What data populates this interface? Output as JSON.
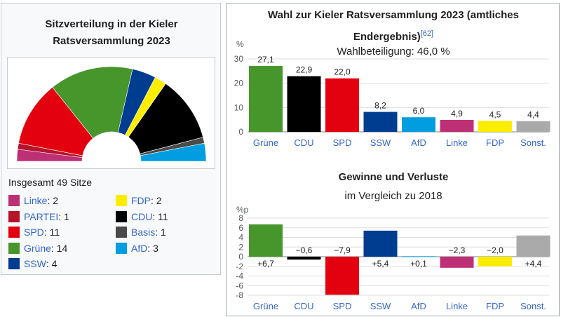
{
  "seat_panel": {
    "title_line1": "Sitzverteilung in der Kieler",
    "title_line2": "Ratsversammlung 2023",
    "total_label": "Insgesamt 49 Sitze",
    "parties": [
      {
        "name": "Linke",
        "seats": 2,
        "color": "#be3075"
      },
      {
        "name": "PARTEI",
        "seats": 1,
        "color": "#b5152b"
      },
      {
        "name": "SPD",
        "seats": 11,
        "color": "#e3000f"
      },
      {
        "name": "Grüne",
        "seats": 14,
        "color": "#46962b"
      },
      {
        "name": "SSW",
        "seats": 4,
        "color": "#003c8f"
      },
      {
        "name": "FDP",
        "seats": 2,
        "color": "#ffed00"
      },
      {
        "name": "CDU",
        "seats": 11,
        "color": "#000000"
      },
      {
        "name": "Basis",
        "seats": 1,
        "color": "#4a4a4a"
      },
      {
        "name": "AfD",
        "seats": 3,
        "color": "#009ee0"
      }
    ]
  },
  "results_panel": {
    "title_line1": "Wahl zur Kieler Ratsversammlung 2023 (amtliches",
    "title_line2": "Endergebnis)",
    "citation": "[62]"
  },
  "chart_data": [
    {
      "type": "bar",
      "title": "Wahl zur Kieler Ratsversammlung 2023 (amtliches Endergebnis)",
      "subtitle": "Wahlbeteiligung: 46,0 %",
      "ylabel": "%",
      "ylim": [
        0,
        30
      ],
      "yticks": [
        0,
        10,
        20,
        30
      ],
      "categories": [
        "Grüne",
        "CDU",
        "SPD",
        "SSW",
        "AfD",
        "Linke",
        "FDP",
        "Sonst."
      ],
      "values": [
        27.1,
        22.9,
        22.0,
        8.2,
        6.0,
        4.9,
        4.5,
        4.4
      ],
      "value_labels": [
        "27,1",
        "22,9",
        "22,0",
        "8,2",
        "6,0",
        "4,9",
        "4,5",
        "4,4"
      ],
      "colors": [
        "#46962b",
        "#000000",
        "#e3000f",
        "#003c8f",
        "#009ee0",
        "#be3075",
        "#ffed00",
        "#aaaaaa"
      ],
      "grid": true
    },
    {
      "type": "bar",
      "title": "Gewinne und Verluste",
      "subtitle": "im Vergleich zu 2018",
      "ylabel": "%p",
      "ylim": [
        -8,
        8
      ],
      "yticks": [
        8,
        6,
        4,
        2,
        0,
        -2,
        -4,
        -6,
        -8
      ],
      "categories": [
        "Grüne",
        "CDU",
        "SPD",
        "SSW",
        "AfD",
        "Linke",
        "FDP",
        "Sonst."
      ],
      "values": [
        6.7,
        -0.6,
        -7.9,
        5.4,
        0.1,
        -2.3,
        -2.0,
        4.4
      ],
      "value_labels": [
        "+6,7",
        "−0,6",
        "−7,9",
        "+5,4",
        "+0,1",
        "−2,3",
        "−2,0",
        "+4,4"
      ],
      "colors": [
        "#46962b",
        "#000000",
        "#e3000f",
        "#003c8f",
        "#009ee0",
        "#be3075",
        "#ffed00",
        "#aaaaaa"
      ],
      "grid": true
    }
  ]
}
